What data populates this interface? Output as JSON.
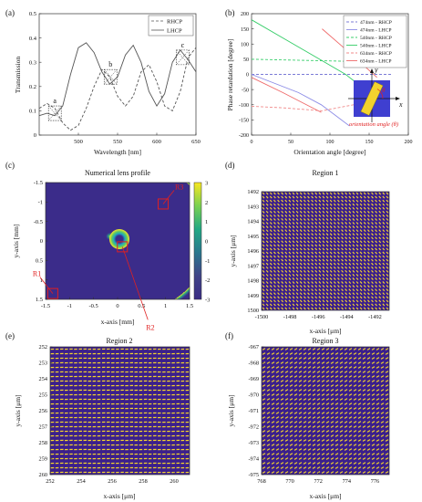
{
  "chart_data": [
    {
      "panel": "(a)",
      "type": "line",
      "title": "",
      "xlabel": "Wavelength [nm]",
      "ylabel": "Transmission",
      "xlim": [
        450,
        650
      ],
      "ylim": [
        0,
        0.5
      ],
      "xticks": [
        500,
        550,
        600,
        650
      ],
      "yticks": [
        0,
        0.1,
        0.2,
        0.3,
        0.4,
        0.5
      ],
      "legend": "top-right",
      "series": [
        {
          "name": "RHCP",
          "style": "dashed",
          "color": "#555555",
          "x": [
            450,
            460,
            470,
            480,
            490,
            500,
            510,
            520,
            530,
            540,
            550,
            560,
            570,
            580,
            590,
            600,
            610,
            620,
            630,
            640,
            650
          ],
          "y": [
            0.11,
            0.13,
            0.11,
            0.05,
            0.02,
            0.04,
            0.11,
            0.2,
            0.27,
            0.24,
            0.16,
            0.12,
            0.16,
            0.26,
            0.29,
            0.22,
            0.12,
            0.1,
            0.18,
            0.32,
            0.36
          ]
        },
        {
          "name": "LHCP",
          "style": "solid",
          "color": "#555555",
          "x": [
            450,
            460,
            470,
            480,
            490,
            500,
            510,
            520,
            530,
            540,
            550,
            560,
            570,
            580,
            590,
            600,
            610,
            620,
            630,
            640,
            650
          ],
          "y": [
            0.08,
            0.09,
            0.08,
            0.12,
            0.25,
            0.36,
            0.38,
            0.34,
            0.26,
            0.21,
            0.24,
            0.33,
            0.37,
            0.3,
            0.18,
            0.12,
            0.17,
            0.3,
            0.35,
            0.31,
            0.26
          ]
        }
      ],
      "annotations": [
        {
          "label": "a",
          "x": 470,
          "y": 0.09
        },
        {
          "label": "b",
          "x": 541,
          "y": 0.24
        },
        {
          "label": "c",
          "x": 633,
          "y": 0.32
        }
      ]
    },
    {
      "panel": "(b)",
      "type": "line",
      "title": "",
      "xlabel": "Orientation angle [degree]",
      "ylabel": "Phase retardation [degree]",
      "xlim": [
        0,
        200
      ],
      "ylim": [
        -200,
        200
      ],
      "xticks": [
        0,
        50,
        100,
        150,
        200
      ],
      "yticks": [
        -200,
        -150,
        -100,
        -50,
        0,
        50,
        100,
        150,
        200
      ],
      "legend": "top-right",
      "series": [
        {
          "name": "474nm - RHCP",
          "style": "dashed",
          "color": "#7b7bd6",
          "x": [
            0,
            180
          ],
          "y": [
            0,
            0
          ]
        },
        {
          "name": "474nm - LHCP",
          "style": "solid",
          "color": "#8c8ce6",
          "x": [
            0,
            60,
            89,
            125,
            126,
            170
          ],
          "y": [
            0,
            -60,
            -100,
            -170,
            170,
            80
          ]
        },
        {
          "name": "540nm - RHCP",
          "style": "dashed",
          "color": "#3ccf6e",
          "x": [
            0,
            180
          ],
          "y": [
            50,
            40
          ]
        },
        {
          "name": "540nm - LHCP",
          "style": "solid",
          "color": "#33cc66",
          "x": [
            0,
            40,
            80,
            120,
            150,
            175
          ],
          "y": [
            180,
            120,
            60,
            0,
            -60,
            -110
          ]
        },
        {
          "name": "634nm - RHCP",
          "style": "dashed",
          "color": "#f08a8a",
          "x": [
            0,
            40,
            90,
            130,
            175
          ],
          "y": [
            -105,
            -110,
            -120,
            -100,
            -110
          ]
        },
        {
          "name": "634nm - LHCP",
          "style": "solid",
          "color": "#ef6a6a",
          "x": [
            0,
            40,
            89,
            90,
            130,
            160
          ],
          "y": [
            -10,
            -60,
            -125,
            150,
            60,
            -10
          ]
        }
      ],
      "inset": {
        "x_label": "x",
        "y_label": "y",
        "theta_label": "θ",
        "caption": "orientation angle (θ)"
      }
    },
    {
      "panel": "(c)",
      "type": "heatmap",
      "title": "Numerical lens profile",
      "xlabel": "x-axis [mm]",
      "ylabel": "y-axis [mm]",
      "xlim": [
        -1.5,
        1.5
      ],
      "ylim": [
        -1.5,
        1.5
      ],
      "xticks": [
        -1.5,
        -1,
        -0.5,
        0,
        0.5,
        1,
        1.5
      ],
      "yticks": [
        -1.5,
        -1,
        -0.5,
        0,
        0.5,
        1,
        1.5
      ],
      "y_inverted": true,
      "colorbar": {
        "min": -3,
        "max": 3,
        "ticks": [
          3,
          2,
          1,
          0,
          -1,
          -2,
          -3
        ]
      },
      "regions": [
        {
          "label": "R1",
          "x": -1.35,
          "y": 1.35
        },
        {
          "label": "R2",
          "x": 0.1,
          "y": 0.15
        },
        {
          "label": "R3",
          "x": 0.95,
          "y": -0.95
        }
      ]
    },
    {
      "panel": "(d)",
      "type": "heatmap",
      "title": "Region 1",
      "xlabel": "x-axis [μm]",
      "ylabel": "y-axis [μm]",
      "xlim": [
        -1500,
        -1491
      ],
      "ylim": [
        1492,
        1500
      ],
      "xticks": [
        -1500,
        -1498,
        -1496,
        -1494,
        -1492
      ],
      "yticks": [
        1492,
        1493,
        1494,
        1495,
        1496,
        1497,
        1498,
        1499,
        1500
      ],
      "y_inverted": true,
      "pattern": "dashes",
      "dash_angle_deg": -42
    },
    {
      "panel": "(e)",
      "type": "heatmap",
      "title": "Region 2",
      "xlabel": "x-axis [μm]",
      "ylabel": "y-axis [μm]",
      "xlim": [
        252,
        261
      ],
      "ylim": [
        252,
        260
      ],
      "xticks": [
        252,
        254,
        256,
        258,
        260
      ],
      "yticks": [
        252,
        253,
        254,
        255,
        256,
        257,
        258,
        259,
        260
      ],
      "y_inverted": true,
      "pattern": "dashes",
      "dash_angle_deg": 88
    },
    {
      "panel": "(f)",
      "type": "heatmap",
      "title": "Region 3",
      "xlabel": "x-axis [μm]",
      "ylabel": "y-axis [μm]",
      "xlim": [
        768,
        777
      ],
      "ylim": [
        -975,
        -967
      ],
      "xticks": [
        768,
        770,
        772,
        774,
        776
      ],
      "yticks": [
        -975,
        -974,
        -973,
        -972,
        -971,
        -970,
        -969,
        -968,
        -967
      ],
      "y_inverted": false,
      "pattern": "dashes",
      "dash_angle_deg": 58
    }
  ]
}
